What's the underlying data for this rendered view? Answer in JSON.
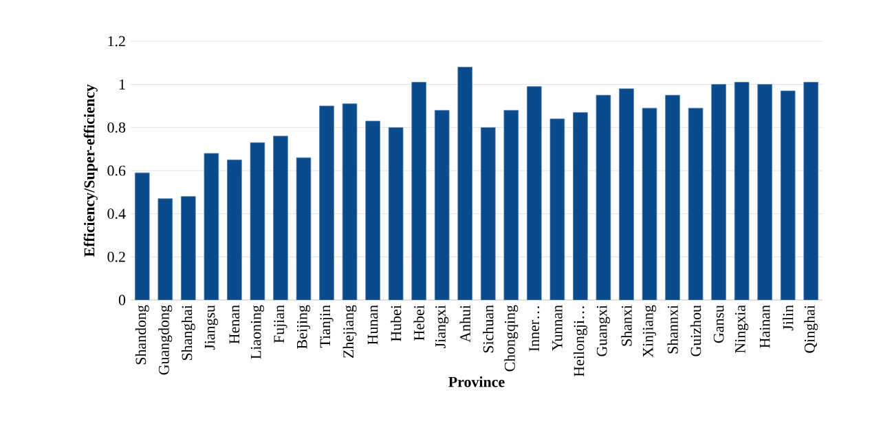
{
  "chart_data": {
    "type": "bar",
    "xlabel": "Province",
    "ylabel": "Efficiency/Super-efficiency",
    "categories": [
      "Shandong",
      "Guangdong",
      "Shanghai",
      "Jiangsu",
      "Henan",
      "Liaoning",
      "Fujian",
      "Beijing",
      "Tianjin",
      "Zhejiang",
      "Hunan",
      "Hubei",
      "Hebei",
      "Jiangxi",
      "Anhui",
      "Sichuan",
      "Chongqing",
      "Inner…",
      "Yunnan",
      "Heilongji…",
      "Guangxi",
      "Shanxi",
      "Xinjiang",
      "Shannxi",
      "Guizhou",
      "Gansu",
      "Ningxia",
      "Hainan",
      "Jilin",
      "Qinghai"
    ],
    "values": [
      0.59,
      0.47,
      0.48,
      0.68,
      0.65,
      0.73,
      0.76,
      0.66,
      0.9,
      0.91,
      0.83,
      0.8,
      1.01,
      0.88,
      1.08,
      0.8,
      0.88,
      0.99,
      0.84,
      0.87,
      0.95,
      0.98,
      0.89,
      0.95,
      0.89,
      1.0,
      1.01,
      1.0,
      0.97,
      1.01
    ],
    "color": "#0b4a8b",
    "ylim": [
      0,
      1.2
    ],
    "yticks": [
      0,
      0.2,
      0.4,
      0.6,
      0.8,
      1,
      1.2
    ],
    "grid": "y"
  }
}
